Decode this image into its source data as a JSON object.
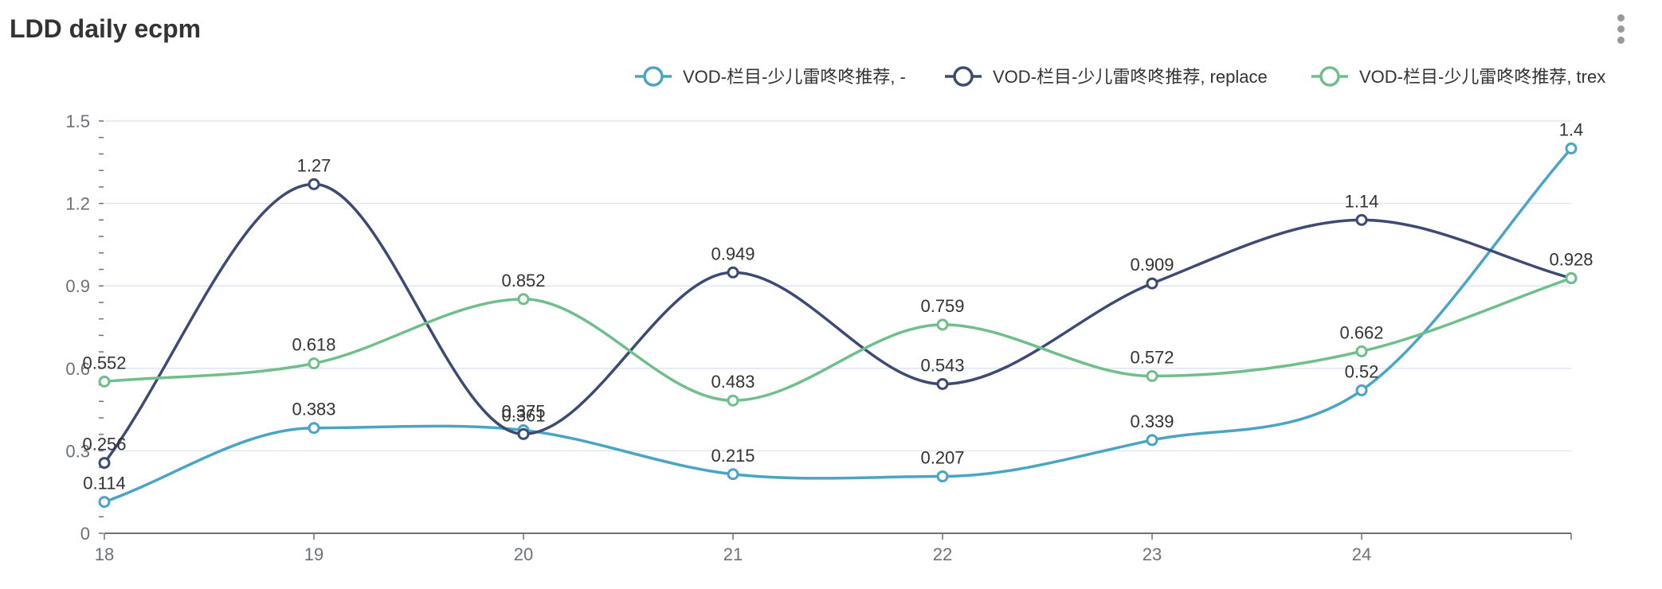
{
  "header": {
    "title": "LDD daily ecpm"
  },
  "colors": {
    "series": [
      "#4aa4c4",
      "#3d4a74",
      "#6fbf8a"
    ],
    "grid": "#e0e6f1",
    "axis": "#6e7079",
    "label": "#333333"
  },
  "icons": {
    "menu": "more-vertical-icon"
  },
  "chart_data": {
    "type": "line",
    "smooth": true,
    "categories": [
      "18",
      "19",
      "20",
      "21",
      "22",
      "23",
      "24",
      ""
    ],
    "y_ticks": [
      "0",
      "0.3",
      "0.6",
      "0.9",
      "1.2",
      "1.5"
    ],
    "ylim": [
      0,
      1.5
    ],
    "grid": true,
    "legend_position": "top-right",
    "series": [
      {
        "name": "VOD-栏目-少儿雷咚咚推荐, -",
        "values": [
          0.114,
          0.383,
          0.375,
          0.215,
          0.207,
          0.339,
          0.52,
          1.4
        ],
        "labels": [
          "0.114",
          "0.383",
          "0.375",
          "0.215",
          "0.207",
          "0.339",
          "0.52",
          "1.4"
        ]
      },
      {
        "name": "VOD-栏目-少儿雷咚咚推荐, replace",
        "values": [
          0.256,
          1.27,
          0.361,
          0.949,
          0.543,
          0.909,
          1.14,
          0.928
        ],
        "labels": [
          "0.256",
          "1.27",
          "0.361",
          "0.949",
          "0.543",
          "0.909",
          "1.14",
          ""
        ]
      },
      {
        "name": "VOD-栏目-少儿雷咚咚推荐, trex",
        "values": [
          0.552,
          0.618,
          0.852,
          0.483,
          0.759,
          0.572,
          0.662,
          0.928
        ],
        "labels": [
          "0.552",
          "0.618",
          "0.852",
          "0.483",
          "0.759",
          "0.572",
          "0.662",
          "0.928"
        ]
      }
    ]
  }
}
